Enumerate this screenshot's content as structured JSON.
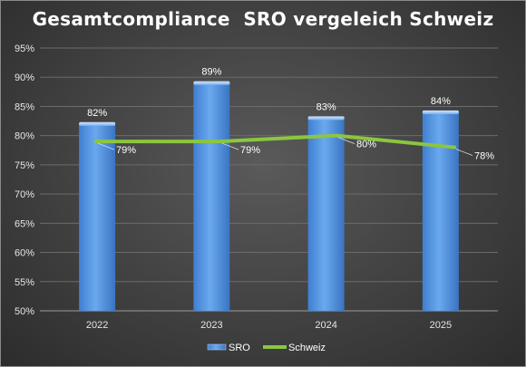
{
  "chart_data": {
    "type": "bar",
    "title": "Gesamtcompliance  SRO vergeleich Schweiz",
    "categories": [
      "2022",
      "2023",
      "2024",
      "2025"
    ],
    "ylim": [
      50,
      95
    ],
    "yticks": [
      "50%",
      "55%",
      "60%",
      "65%",
      "70%",
      "75%",
      "80%",
      "85%",
      "90%",
      "95%"
    ],
    "ytick_values": [
      50,
      55,
      60,
      65,
      70,
      75,
      80,
      85,
      90,
      95
    ],
    "grid": true,
    "legend_position": "bottom",
    "series": [
      {
        "name": "SRO",
        "type": "bar",
        "color": "#5b9be3",
        "values": [
          82,
          89,
          83,
          84
        ],
        "labels": [
          "82%",
          "89%",
          "83%",
          "84%"
        ]
      },
      {
        "name": "Schweiz",
        "type": "line",
        "color": "#8cc63f",
        "values": [
          79,
          79,
          80,
          78
        ],
        "labels": [
          "79%",
          "79%",
          "80%",
          "78%"
        ]
      }
    ]
  }
}
